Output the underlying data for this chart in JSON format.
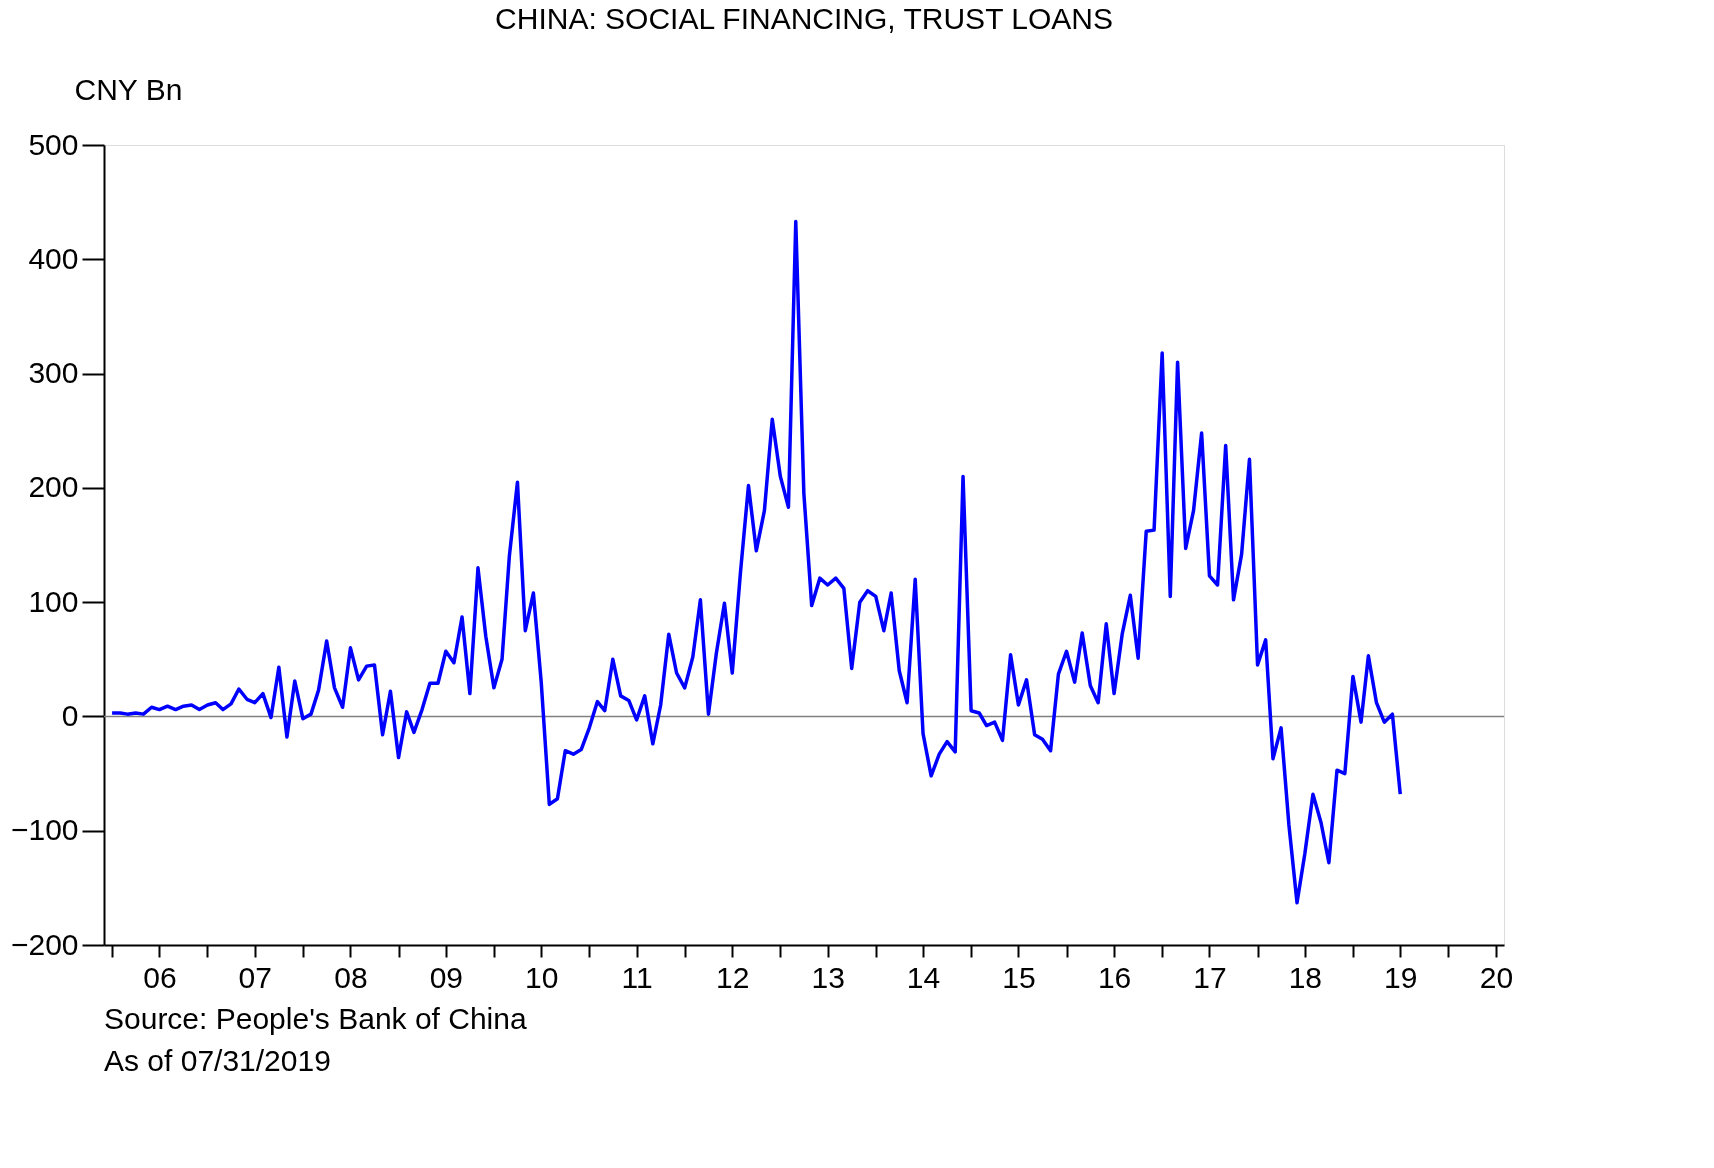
{
  "chart_data": {
    "type": "line",
    "title": "CHINA: SOCIAL FINANCING, TRUST LOANS",
    "ylabel": "CNY Bn",
    "x": [
      "2006-01",
      "2006-02",
      "2006-03",
      "2006-04",
      "2006-05",
      "2006-06",
      "2006-07",
      "2006-08",
      "2006-09",
      "2006-10",
      "2006-11",
      "2006-12",
      "2007-01",
      "2007-02",
      "2007-03",
      "2007-04",
      "2007-05",
      "2007-06",
      "2007-07",
      "2007-08",
      "2007-09",
      "2007-10",
      "2007-11",
      "2007-12",
      "2008-01",
      "2008-02",
      "2008-03",
      "2008-04",
      "2008-05",
      "2008-06",
      "2008-07",
      "2008-08",
      "2008-09",
      "2008-10",
      "2008-11",
      "2008-12",
      "2009-01",
      "2009-02",
      "2009-03",
      "2009-04",
      "2009-05",
      "2009-06",
      "2009-07",
      "2009-08",
      "2009-09",
      "2009-10",
      "2009-11",
      "2009-12",
      "2010-01",
      "2010-02",
      "2010-03",
      "2010-04",
      "2010-05",
      "2010-06",
      "2010-07",
      "2010-08",
      "2010-09",
      "2010-10",
      "2010-11",
      "2010-12",
      "2011-01",
      "2011-02",
      "2011-03",
      "2011-04",
      "2011-05",
      "2011-06",
      "2011-07",
      "2011-08",
      "2011-09",
      "2011-10",
      "2011-11",
      "2011-12",
      "2012-01",
      "2012-02",
      "2012-03",
      "2012-04",
      "2012-05",
      "2012-06",
      "2012-07",
      "2012-08",
      "2012-09",
      "2012-10",
      "2012-11",
      "2012-12",
      "2013-01",
      "2013-02",
      "2013-03",
      "2013-04",
      "2013-05",
      "2013-06",
      "2013-07",
      "2013-08",
      "2013-09",
      "2013-10",
      "2013-11",
      "2013-12",
      "2014-01",
      "2014-02",
      "2014-03",
      "2014-04",
      "2014-05",
      "2014-06",
      "2014-07",
      "2014-08",
      "2014-09",
      "2014-10",
      "2014-11",
      "2014-12",
      "2015-01",
      "2015-02",
      "2015-03",
      "2015-04",
      "2015-05",
      "2015-06",
      "2015-07",
      "2015-08",
      "2015-09",
      "2015-10",
      "2015-11",
      "2015-12",
      "2016-01",
      "2016-02",
      "2016-03",
      "2016-04",
      "2016-05",
      "2016-06",
      "2016-07",
      "2016-08",
      "2016-09",
      "2016-10",
      "2016-11",
      "2016-12",
      "2017-01",
      "2017-02",
      "2017-03",
      "2017-04",
      "2017-05",
      "2017-06",
      "2017-07",
      "2017-08",
      "2017-09",
      "2017-10",
      "2017-11",
      "2017-12",
      "2018-01",
      "2018-02",
      "2018-03",
      "2018-04",
      "2018-05",
      "2018-06",
      "2018-07",
      "2018-08",
      "2018-09",
      "2018-10",
      "2018-11",
      "2018-12",
      "2019-01",
      "2019-02",
      "2019-03",
      "2019-04",
      "2019-05",
      "2019-06",
      "2019-07"
    ],
    "ylim": [
      -200,
      500
    ],
    "yticks": [
      -200,
      -100,
      0,
      100,
      200,
      300,
      400,
      500
    ],
    "xlim": [
      "2005-12",
      "2020-08"
    ],
    "xticks": [
      {
        "value": "2006-01",
        "label": null
      },
      {
        "value": "2006-07",
        "label": "06"
      },
      {
        "value": "2007-01",
        "label": null
      },
      {
        "value": "2007-07",
        "label": "07"
      },
      {
        "value": "2008-01",
        "label": null
      },
      {
        "value": "2008-07",
        "label": "08"
      },
      {
        "value": "2009-01",
        "label": null
      },
      {
        "value": "2009-07",
        "label": "09"
      },
      {
        "value": "2010-01",
        "label": null
      },
      {
        "value": "2010-07",
        "label": "10"
      },
      {
        "value": "2011-01",
        "label": null
      },
      {
        "value": "2011-07",
        "label": "11"
      },
      {
        "value": "2012-01",
        "label": null
      },
      {
        "value": "2012-07",
        "label": "12"
      },
      {
        "value": "2013-01",
        "label": null
      },
      {
        "value": "2013-07",
        "label": "13"
      },
      {
        "value": "2014-01",
        "label": null
      },
      {
        "value": "2014-07",
        "label": "14"
      },
      {
        "value": "2015-01",
        "label": null
      },
      {
        "value": "2015-07",
        "label": "15"
      },
      {
        "value": "2016-01",
        "label": null
      },
      {
        "value": "2016-07",
        "label": "16"
      },
      {
        "value": "2017-01",
        "label": null
      },
      {
        "value": "2017-07",
        "label": "17"
      },
      {
        "value": "2018-01",
        "label": null
      },
      {
        "value": "2018-07",
        "label": "18"
      },
      {
        "value": "2019-01",
        "label": null
      },
      {
        "value": "2019-07",
        "label": "19"
      },
      {
        "value": "2020-01",
        "label": null
      },
      {
        "value": "2020-07",
        "label": "20"
      }
    ],
    "grid": false,
    "marker": "none",
    "line_style": "solid",
    "ref_lines": [
      {
        "axis": "y",
        "value": 0,
        "color": "#808080"
      }
    ],
    "annotations": [
      "Source: People's Bank of China",
      "As of  07/31/2019"
    ],
    "series": [
      {
        "color": "#0000ff",
        "values": [
          3,
          3,
          2,
          3,
          2,
          8,
          6,
          9,
          6,
          9,
          10,
          6,
          10,
          12,
          6,
          11,
          24,
          15,
          12,
          20,
          -1,
          43,
          -18,
          31,
          -2,
          2,
          23,
          66,
          25,
          8,
          60,
          32,
          44,
          45,
          -16,
          22,
          -36,
          4,
          -14,
          6,
          29,
          29,
          57,
          47,
          87,
          20,
          130,
          70,
          25,
          50,
          140,
          205,
          75,
          108,
          30,
          -77,
          -72,
          -30,
          -33,
          -29,
          -10,
          13,
          5,
          50,
          18,
          14,
          -3,
          18,
          -24,
          10,
          72,
          38,
          25,
          52,
          102,
          2,
          55,
          99,
          38,
          125,
          202,
          145,
          180,
          260,
          210,
          183,
          433,
          195,
          97,
          121,
          115,
          121,
          112,
          42,
          100,
          110,
          105,
          75,
          108,
          40,
          12,
          120,
          -15,
          -52,
          -33,
          -22,
          -31,
          210,
          5,
          3,
          -8,
          -5,
          -21,
          54,
          10,
          32,
          -16,
          -20,
          -30,
          37,
          57,
          30,
          73,
          27,
          12,
          81,
          20,
          72,
          106,
          51,
          162,
          163,
          318,
          105,
          310,
          147,
          180,
          248,
          123,
          115,
          237,
          102,
          142,
          225,
          45,
          67,
          -37,
          -10,
          -95,
          -163,
          -120,
          -68,
          -93,
          -128,
          -47,
          -50,
          35,
          -5,
          53,
          12,
          -5,
          2,
          -68
        ]
      }
    ]
  }
}
